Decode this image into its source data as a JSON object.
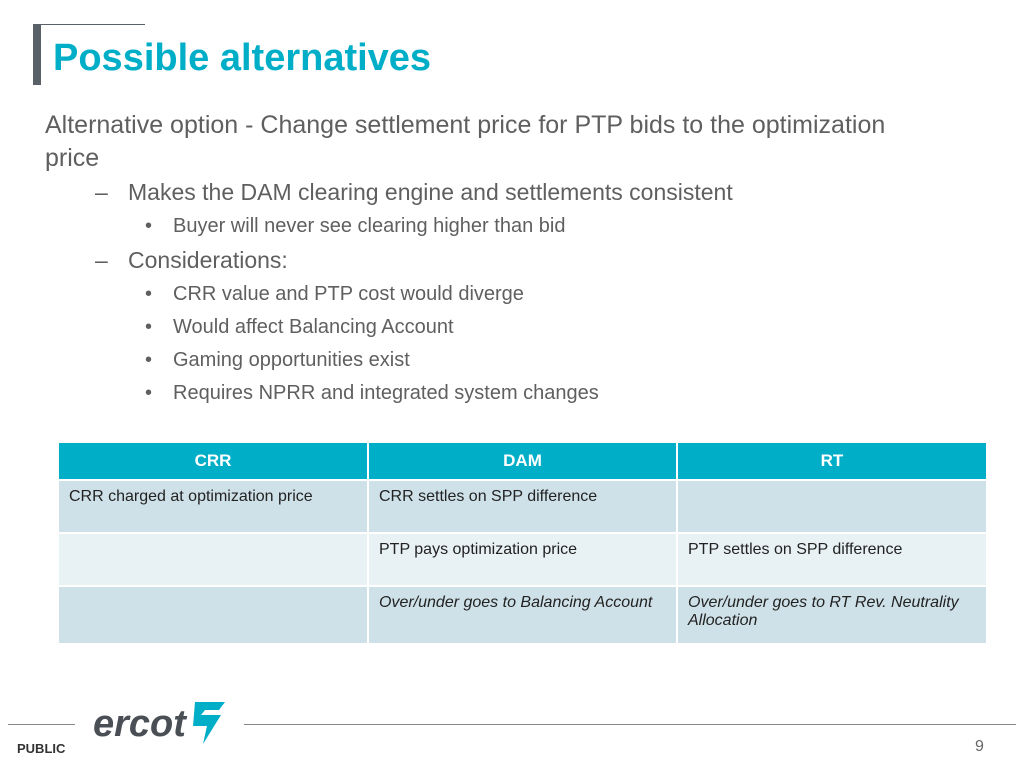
{
  "slide": {
    "title": "Possible alternatives",
    "main_point": "Alternative option - Change settlement price for PTP bids to the optimization price",
    "sub1": "Makes the DAM clearing engine and settlements consistent",
    "sub1_bullets": [
      "Buyer will never see clearing higher than bid"
    ],
    "sub2": "Considerations:",
    "sub2_bullets": [
      "CRR value and PTP cost would diverge",
      "Would affect Balancing Account",
      "Gaming opportunities exist",
      "Requires NPRR and integrated system changes"
    ],
    "dash": "–",
    "bullet": "•"
  },
  "table": {
    "headers": [
      "CRR",
      "DAM",
      "RT"
    ],
    "rows": [
      [
        "CRR charged at optimization price",
        "CRR settles on SPP difference",
        ""
      ],
      [
        "",
        "PTP pays optimization price",
        "PTP settles on SPP difference"
      ],
      [
        "",
        "Over/under goes to Balancing Account",
        "Over/under goes to RT Rev. Neutrality Allocation"
      ]
    ]
  },
  "footer": {
    "label": "PUBLIC",
    "page": "9",
    "logo_text": "ercot"
  },
  "colors": {
    "accent": "#00aec7",
    "row_dark": "#cfe1e8",
    "row_light": "#e8f1f4"
  }
}
